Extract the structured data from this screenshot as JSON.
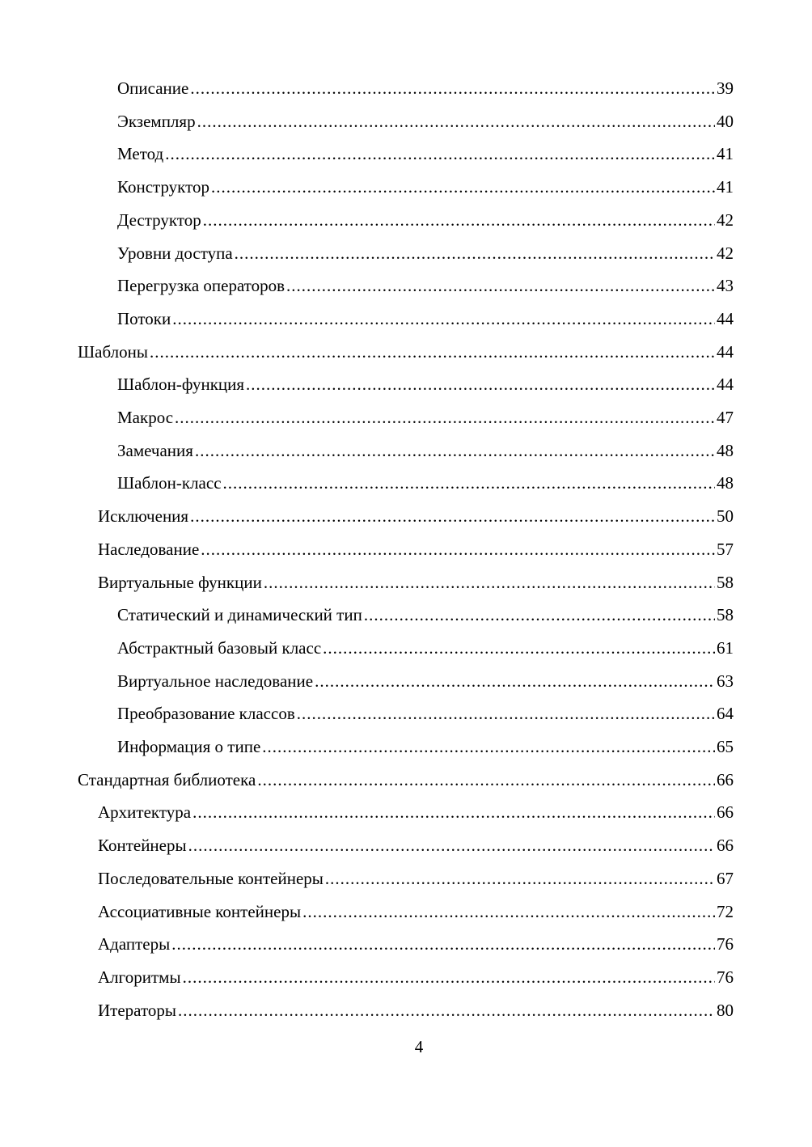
{
  "toc": [
    {
      "title": "Описание",
      "page": "39",
      "level": 2
    },
    {
      "title": "Экземпляр",
      "page": "40",
      "level": 2
    },
    {
      "title": "Метод",
      "page": "41",
      "level": 2
    },
    {
      "title": "Конструктор",
      "page": "41",
      "level": 2
    },
    {
      "title": "Деструктор",
      "page": "42",
      "level": 2
    },
    {
      "title": "Уровни доступа",
      "page": "42",
      "level": 2
    },
    {
      "title": "Перегрузка операторов",
      "page": "43",
      "level": 2
    },
    {
      "title": "Потоки",
      "page": "44",
      "level": 2
    },
    {
      "title": "Шаблоны",
      "page": "44",
      "level": 0
    },
    {
      "title": "Шаблон-функция",
      "page": "44",
      "level": 2
    },
    {
      "title": "Макрос",
      "page": "47",
      "level": 2
    },
    {
      "title": "Замечания",
      "page": "48",
      "level": 2
    },
    {
      "title": "Шаблон-класс",
      "page": "48",
      "level": 2
    },
    {
      "title": "Исключения",
      "page": "50",
      "level": 1
    },
    {
      "title": "Наследование",
      "page": "57",
      "level": 1
    },
    {
      "title": "Виртуальные функции",
      "page": "58",
      "level": 1
    },
    {
      "title": "Статический и динамический тип",
      "page": "58",
      "level": 2
    },
    {
      "title": "Абстрактный базовый класс",
      "page": "61",
      "level": 2
    },
    {
      "title": "Виртуальное наследование",
      "page": "63",
      "level": 2
    },
    {
      "title": "Преобразование классов",
      "page": "64",
      "level": 2
    },
    {
      "title": "Информация о типе",
      "page": "65",
      "level": 2
    },
    {
      "title": "Стандартная библиотека",
      "page": "66",
      "level": 0
    },
    {
      "title": "Архитектура",
      "page": "66",
      "level": 1
    },
    {
      "title": "Контейнеры",
      "page": "66",
      "level": 1
    },
    {
      "title": "Последовательные контейнеры",
      "page": "67",
      "level": 1
    },
    {
      "title": "Ассоциативные контейнеры",
      "page": "72",
      "level": 1
    },
    {
      "title": "Адаптеры",
      "page": "76",
      "level": 1
    },
    {
      "title": "Алгоритмы",
      "page": "76",
      "level": 1
    },
    {
      "title": "Итераторы",
      "page": "80",
      "level": 1
    }
  ],
  "page_number": "4"
}
